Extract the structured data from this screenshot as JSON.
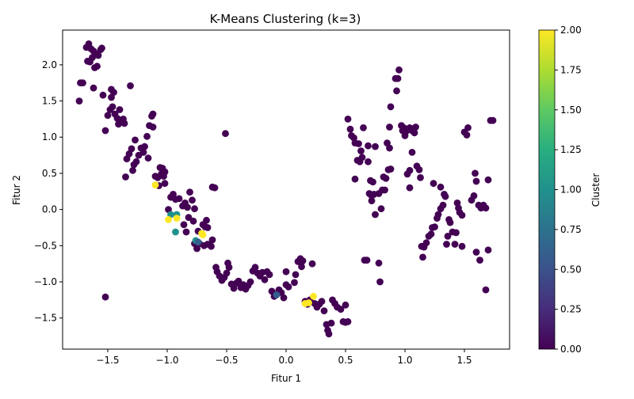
{
  "chart_data": {
    "type": "scatter",
    "title": "K-Means Clustering (k=3)",
    "xlabel": "Fitur 1",
    "ylabel": "Fitur 2",
    "xlim": [
      -1.88,
      1.88
    ],
    "ylim": [
      -1.93,
      2.48
    ],
    "xticks": [
      -1.5,
      -1.0,
      -0.5,
      0.0,
      0.5,
      1.0,
      1.5
    ],
    "xtick_labels": [
      "−1.5",
      "−1.0",
      "−0.5",
      "0.0",
      "0.5",
      "1.0",
      "1.5"
    ],
    "yticks": [
      -1.5,
      -1.0,
      -0.5,
      0.0,
      0.5,
      1.0,
      1.5,
      2.0
    ],
    "ytick_labels": [
      "−1.5",
      "−1.0",
      "−0.5",
      "0.0",
      "0.5",
      "1.0",
      "1.5",
      "2.0"
    ],
    "grid": false,
    "colorbar": {
      "label": "Cluster",
      "colormap": "viridis",
      "range": [
        0.0,
        2.0
      ],
      "ticks": [
        0.0,
        0.25,
        0.5,
        0.75,
        1.0,
        1.25,
        1.5,
        1.75,
        2.0
      ],
      "tick_labels": [
        "0.00",
        "0.25",
        "0.50",
        "0.75",
        "1.00",
        "1.25",
        "1.50",
        "1.75",
        "2.00"
      ]
    },
    "points": [
      [
        -1.68,
        2.24,
        0
      ],
      [
        -1.66,
        2.29,
        0
      ],
      [
        -1.64,
        2.22,
        0
      ],
      [
        -1.62,
        2.19,
        0
      ],
      [
        -1.6,
        2.15,
        0
      ],
      [
        -1.58,
        2.13,
        0
      ],
      [
        -1.56,
        2.21,
        0
      ],
      [
        -1.55,
        2.23,
        0
      ],
      [
        -1.61,
        1.96,
        0
      ],
      [
        -1.59,
        1.98,
        0
      ],
      [
        -1.63,
        2.1,
        0
      ],
      [
        -1.67,
        2.05,
        0
      ],
      [
        -1.65,
        2.04,
        0
      ],
      [
        -1.62,
        1.68,
        0
      ],
      [
        -1.73,
        1.75,
        0
      ],
      [
        -1.71,
        1.75,
        0
      ],
      [
        -1.74,
        1.5,
        0
      ],
      [
        -1.54,
        1.58,
        0
      ],
      [
        -1.47,
        1.66,
        0
      ],
      [
        -1.45,
        1.62,
        0
      ],
      [
        -1.47,
        1.55,
        0
      ],
      [
        -1.31,
        1.71,
        0
      ],
      [
        -1.5,
        1.3,
        0
      ],
      [
        -1.48,
        1.38,
        0
      ],
      [
        -1.46,
        1.42,
        0
      ],
      [
        -1.44,
        1.32,
        0
      ],
      [
        -1.42,
        1.26,
        0
      ],
      [
        -1.4,
        1.38,
        0
      ],
      [
        -1.38,
        1.22,
        0
      ],
      [
        -1.36,
        1.19,
        0
      ],
      [
        -1.41,
        1.18,
        0
      ],
      [
        -1.52,
        1.09,
        0
      ],
      [
        -1.37,
        1.25,
        0
      ],
      [
        -1.12,
        1.32,
        0
      ],
      [
        -1.13,
        1.29,
        0
      ],
      [
        -1.15,
        1.16,
        0
      ],
      [
        -1.12,
        1.14,
        0
      ],
      [
        -1.17,
        1.01,
        0
      ],
      [
        -1.27,
        0.96,
        0
      ],
      [
        -1.22,
        0.85,
        0
      ],
      [
        -1.19,
        0.87,
        0
      ],
      [
        -1.24,
        0.75,
        0
      ],
      [
        -1.2,
        0.79,
        0
      ],
      [
        -1.16,
        0.71,
        0
      ],
      [
        -1.3,
        0.84,
        0
      ],
      [
        -1.32,
        0.77,
        0
      ],
      [
        -1.34,
        0.7,
        0
      ],
      [
        -1.35,
        0.45,
        0
      ],
      [
        -1.29,
        0.54,
        0
      ],
      [
        -1.28,
        0.62,
        0
      ],
      [
        -1.26,
        0.66,
        0
      ],
      [
        -1.06,
        0.58,
        0
      ],
      [
        -1.04,
        0.57,
        0
      ],
      [
        -1.02,
        0.52,
        0
      ],
      [
        -1.05,
        0.49,
        0
      ],
      [
        -1.08,
        0.44,
        0
      ],
      [
        -1.1,
        0.46,
        0
      ],
      [
        -1.03,
        0.46,
        0
      ],
      [
        -1.07,
        0.33,
        0
      ],
      [
        -1.02,
        0.36,
        0
      ],
      [
        -0.95,
        0.21,
        0
      ],
      [
        -0.97,
        0.17,
        0
      ],
      [
        -0.93,
        0.14,
        0
      ],
      [
        -0.9,
        0.15,
        0
      ],
      [
        -0.85,
        0.09,
        0
      ],
      [
        -0.83,
        0.03,
        0
      ],
      [
        -0.87,
        0.05,
        0
      ],
      [
        -0.81,
        0.24,
        0
      ],
      [
        -0.79,
        0.13,
        0
      ],
      [
        -0.77,
        0.01,
        0
      ],
      [
        -0.99,
        0.0,
        0
      ],
      [
        -0.82,
        -0.11,
        0
      ],
      [
        -0.78,
        -0.16,
        0
      ],
      [
        -0.86,
        -0.21,
        0
      ],
      [
        -0.84,
        -0.31,
        0
      ],
      [
        -0.74,
        -0.3,
        0
      ],
      [
        -0.71,
        -0.33,
        0
      ],
      [
        -0.7,
        -0.21,
        0
      ],
      [
        -0.68,
        -0.24,
        0
      ],
      [
        -0.66,
        -0.25,
        0
      ],
      [
        -0.67,
        -0.15,
        0
      ],
      [
        -0.6,
        0.3,
        0
      ],
      [
        -0.62,
        0.31,
        0
      ],
      [
        -0.51,
        1.05,
        0
      ],
      [
        -0.77,
        -0.47,
        0
      ],
      [
        -0.73,
        -0.47,
        0
      ],
      [
        -0.75,
        -0.54,
        0
      ],
      [
        -0.69,
        -0.5,
        0
      ],
      [
        -0.66,
        -0.48,
        0
      ],
      [
        -0.63,
        -0.51,
        0
      ],
      [
        -0.62,
        -0.42,
        0
      ],
      [
        -0.59,
        -0.8,
        0
      ],
      [
        -0.58,
        -0.86,
        0
      ],
      [
        -0.56,
        -0.92,
        0
      ],
      [
        -0.54,
        -0.98,
        0
      ],
      [
        -0.52,
        -0.94,
        0
      ],
      [
        -0.5,
        -0.88,
        0
      ],
      [
        -0.48,
        -0.8,
        0
      ],
      [
        -0.49,
        -0.74,
        0
      ],
      [
        -0.46,
        -1.03,
        0
      ],
      [
        -0.44,
        -1.09,
        0
      ],
      [
        -0.42,
        -1.02,
        0
      ],
      [
        -0.4,
        -0.99,
        0
      ],
      [
        -0.38,
        -1.08,
        0
      ],
      [
        -0.36,
        -1.04,
        0
      ],
      [
        -0.34,
        -1.1,
        0
      ],
      [
        -0.32,
        -1.05,
        0
      ],
      [
        -0.3,
        -1.0,
        0
      ],
      [
        -0.28,
        -0.85,
        0
      ],
      [
        -0.26,
        -0.8,
        0
      ],
      [
        -0.24,
        -0.88,
        0
      ],
      [
        -0.22,
        -0.92,
        0
      ],
      [
        -0.2,
        -0.87,
        0
      ],
      [
        -0.18,
        -0.97,
        0
      ],
      [
        -0.16,
        -0.86,
        0
      ],
      [
        -0.14,
        -0.9,
        0
      ],
      [
        -0.12,
        -1.13,
        0
      ],
      [
        -0.1,
        -1.2,
        0
      ],
      [
        -0.08,
        -1.17,
        0
      ],
      [
        -0.06,
        -1.11,
        0
      ],
      [
        -0.04,
        -1.15,
        0
      ],
      [
        -0.02,
        -1.22,
        0
      ],
      [
        0.0,
        -1.04,
        0
      ],
      [
        0.02,
        -1.07,
        0
      ],
      [
        0.0,
        -0.86,
        0
      ],
      [
        0.07,
        -1.01,
        0
      ],
      [
        0.08,
        -0.9,
        0
      ],
      [
        0.1,
        -0.72,
        0
      ],
      [
        0.12,
        -0.68,
        0
      ],
      [
        0.14,
        -0.71,
        0
      ],
      [
        0.13,
        -0.79,
        0
      ],
      [
        0.22,
        -0.75,
        0
      ],
      [
        0.16,
        -1.27,
        0
      ],
      [
        0.18,
        -1.31,
        0
      ],
      [
        0.2,
        -1.25,
        0
      ],
      [
        0.24,
        -1.3,
        0
      ],
      [
        0.26,
        -1.35,
        0
      ],
      [
        0.28,
        -1.31,
        0
      ],
      [
        0.3,
        -1.27,
        0
      ],
      [
        0.32,
        -1.4,
        0
      ],
      [
        0.34,
        -1.59,
        0
      ],
      [
        0.35,
        -1.67,
        0
      ],
      [
        0.36,
        -1.72,
        0
      ],
      [
        0.38,
        -1.57,
        0
      ],
      [
        0.39,
        -1.25,
        0
      ],
      [
        0.41,
        -1.3,
        0
      ],
      [
        0.43,
        -1.35,
        0
      ],
      [
        0.46,
        -1.38,
        0
      ],
      [
        0.48,
        -1.55,
        0
      ],
      [
        0.5,
        -1.56,
        0
      ],
      [
        0.52,
        -1.55,
        0
      ],
      [
        0.5,
        -1.32,
        0
      ],
      [
        -1.52,
        -1.21,
        0
      ],
      [
        0.52,
        1.25,
        0
      ],
      [
        0.54,
        1.11,
        0
      ],
      [
        0.55,
        1.02,
        0
      ],
      [
        0.57,
        0.99,
        0
      ],
      [
        0.58,
        0.92,
        0
      ],
      [
        0.61,
        0.91,
        0
      ],
      [
        0.63,
        0.81,
        0
      ],
      [
        0.65,
        1.13,
        0
      ],
      [
        0.69,
        0.88,
        0
      ],
      [
        0.69,
        0.66,
        0
      ],
      [
        0.64,
        0.72,
        0
      ],
      [
        0.6,
        0.68,
        0
      ],
      [
        0.62,
        0.66,
        0
      ],
      [
        0.58,
        0.42,
        0
      ],
      [
        0.71,
        0.4,
        0
      ],
      [
        0.73,
        0.38,
        0
      ],
      [
        0.7,
        0.22,
        0
      ],
      [
        0.72,
        0.19,
        0
      ],
      [
        0.74,
        0.21,
        0
      ],
      [
        0.72,
        0.12,
        0
      ],
      [
        0.75,
        -0.07,
        0
      ],
      [
        0.8,
        0.01,
        0
      ],
      [
        0.78,
        0.22,
        0
      ],
      [
        0.81,
        0.27,
        0
      ],
      [
        0.83,
        0.27,
        0
      ],
      [
        0.82,
        0.45,
        0
      ],
      [
        0.84,
        0.43,
        0
      ],
      [
        0.86,
        0.55,
        0
      ],
      [
        0.88,
        0.56,
        0
      ],
      [
        0.85,
        0.92,
        0
      ],
      [
        0.87,
        0.85,
        0
      ],
      [
        0.87,
        1.14,
        0
      ],
      [
        0.75,
        0.87,
        0
      ],
      [
        0.66,
        -0.7,
        0
      ],
      [
        0.68,
        -0.7,
        0
      ],
      [
        0.78,
        -0.74,
        0
      ],
      [
        0.79,
        -1.0,
        0
      ],
      [
        0.88,
        1.42,
        0
      ],
      [
        0.92,
        1.81,
        0
      ],
      [
        0.94,
        1.81,
        0
      ],
      [
        0.93,
        1.64,
        0
      ],
      [
        0.95,
        1.93,
        0
      ],
      [
        0.97,
        1.16,
        0
      ],
      [
        0.98,
        1.09,
        0
      ],
      [
        1.0,
        1.02,
        0
      ],
      [
        0.99,
        1.13,
        0
      ],
      [
        1.01,
        1.08,
        0
      ],
      [
        1.04,
        1.13,
        0
      ],
      [
        1.06,
        1.09,
        0
      ],
      [
        1.09,
        1.14,
        0
      ],
      [
        1.08,
        1.06,
        0
      ],
      [
        1.02,
        0.49,
        0
      ],
      [
        1.04,
        0.54,
        0
      ],
      [
        1.06,
        0.79,
        0
      ],
      [
        1.04,
        0.3,
        0
      ],
      [
        1.1,
        0.6,
        0
      ],
      [
        1.12,
        0.55,
        0
      ],
      [
        1.13,
        0.44,
        0
      ],
      [
        1.14,
        -0.51,
        0
      ],
      [
        1.16,
        -0.52,
        0
      ],
      [
        1.18,
        -0.46,
        0
      ],
      [
        1.2,
        -0.37,
        0
      ],
      [
        1.22,
        -0.34,
        0
      ],
      [
        1.15,
        -0.66,
        0
      ],
      [
        1.24,
        0.36,
        0
      ],
      [
        1.23,
        -0.25,
        0
      ],
      [
        1.25,
        -0.24,
        0
      ],
      [
        1.27,
        -0.12,
        0
      ],
      [
        1.28,
        -0.07,
        0
      ],
      [
        1.3,
        0.01,
        0
      ],
      [
        1.32,
        0.06,
        0
      ],
      [
        1.3,
        0.31,
        0
      ],
      [
        1.33,
        0.21,
        0
      ],
      [
        1.34,
        0.18,
        0
      ],
      [
        1.35,
        -0.48,
        0
      ],
      [
        1.36,
        -0.37,
        0
      ],
      [
        1.37,
        -0.14,
        0
      ],
      [
        1.38,
        -0.18,
        0
      ],
      [
        1.4,
        -0.31,
        0
      ],
      [
        1.42,
        -0.48,
        0
      ],
      [
        1.43,
        -0.32,
        0
      ],
      [
        1.45,
        0.02,
        0
      ],
      [
        1.46,
        -0.04,
        0
      ],
      [
        1.48,
        -0.08,
        0
      ],
      [
        1.44,
        0.09,
        0
      ],
      [
        1.48,
        -0.51,
        0
      ],
      [
        1.5,
        1.07,
        0
      ],
      [
        1.52,
        1.03,
        0
      ],
      [
        1.53,
        1.13,
        0
      ],
      [
        1.56,
        0.13,
        0
      ],
      [
        1.58,
        0.19,
        0
      ],
      [
        1.59,
        0.5,
        0
      ],
      [
        1.6,
        0.39,
        0
      ],
      [
        1.6,
        -0.59,
        0
      ],
      [
        1.63,
        -0.7,
        0
      ],
      [
        1.62,
        0.06,
        0
      ],
      [
        1.64,
        0.02,
        0
      ],
      [
        1.66,
        0.06,
        0
      ],
      [
        1.68,
        0.02,
        0
      ],
      [
        1.7,
        0.41,
        0
      ],
      [
        1.7,
        -0.56,
        0
      ],
      [
        1.68,
        -1.11,
        0
      ],
      [
        1.72,
        1.23,
        0
      ],
      [
        1.74,
        1.23,
        0
      ],
      [
        -0.92,
        -0.07,
        1
      ],
      [
        -0.97,
        -0.07,
        1
      ],
      [
        -0.93,
        -0.31,
        1
      ],
      [
        -0.76,
        -0.43,
        1
      ],
      [
        -0.74,
        -0.45,
        0.6
      ],
      [
        -0.08,
        -1.18,
        0.6
      ],
      [
        -1.1,
        0.34,
        2
      ],
      [
        -0.99,
        -0.14,
        2
      ],
      [
        -0.92,
        -0.12,
        2
      ],
      [
        -0.71,
        -0.33,
        2
      ],
      [
        -0.7,
        -0.35,
        2
      ],
      [
        0.23,
        -1.2,
        2
      ],
      [
        0.19,
        -1.29,
        2
      ],
      [
        0.16,
        -1.3,
        2
      ]
    ]
  }
}
